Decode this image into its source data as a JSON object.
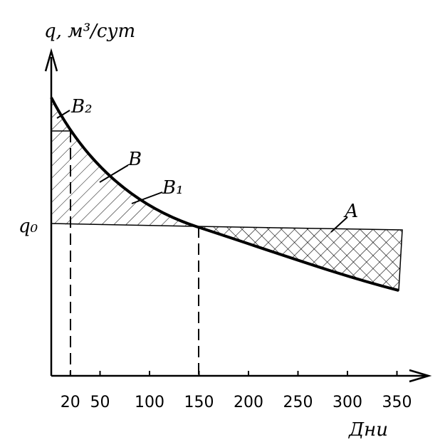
{
  "axis_labels": {
    "y": "q, м³/сут",
    "x": "Дни"
  },
  "q0_label": "q₀",
  "region_labels": [
    "В₂",
    "В",
    "В₁",
    "А"
  ],
  "x_ticks": [
    20,
    50,
    100,
    150,
    200,
    250,
    300,
    350
  ]
}
